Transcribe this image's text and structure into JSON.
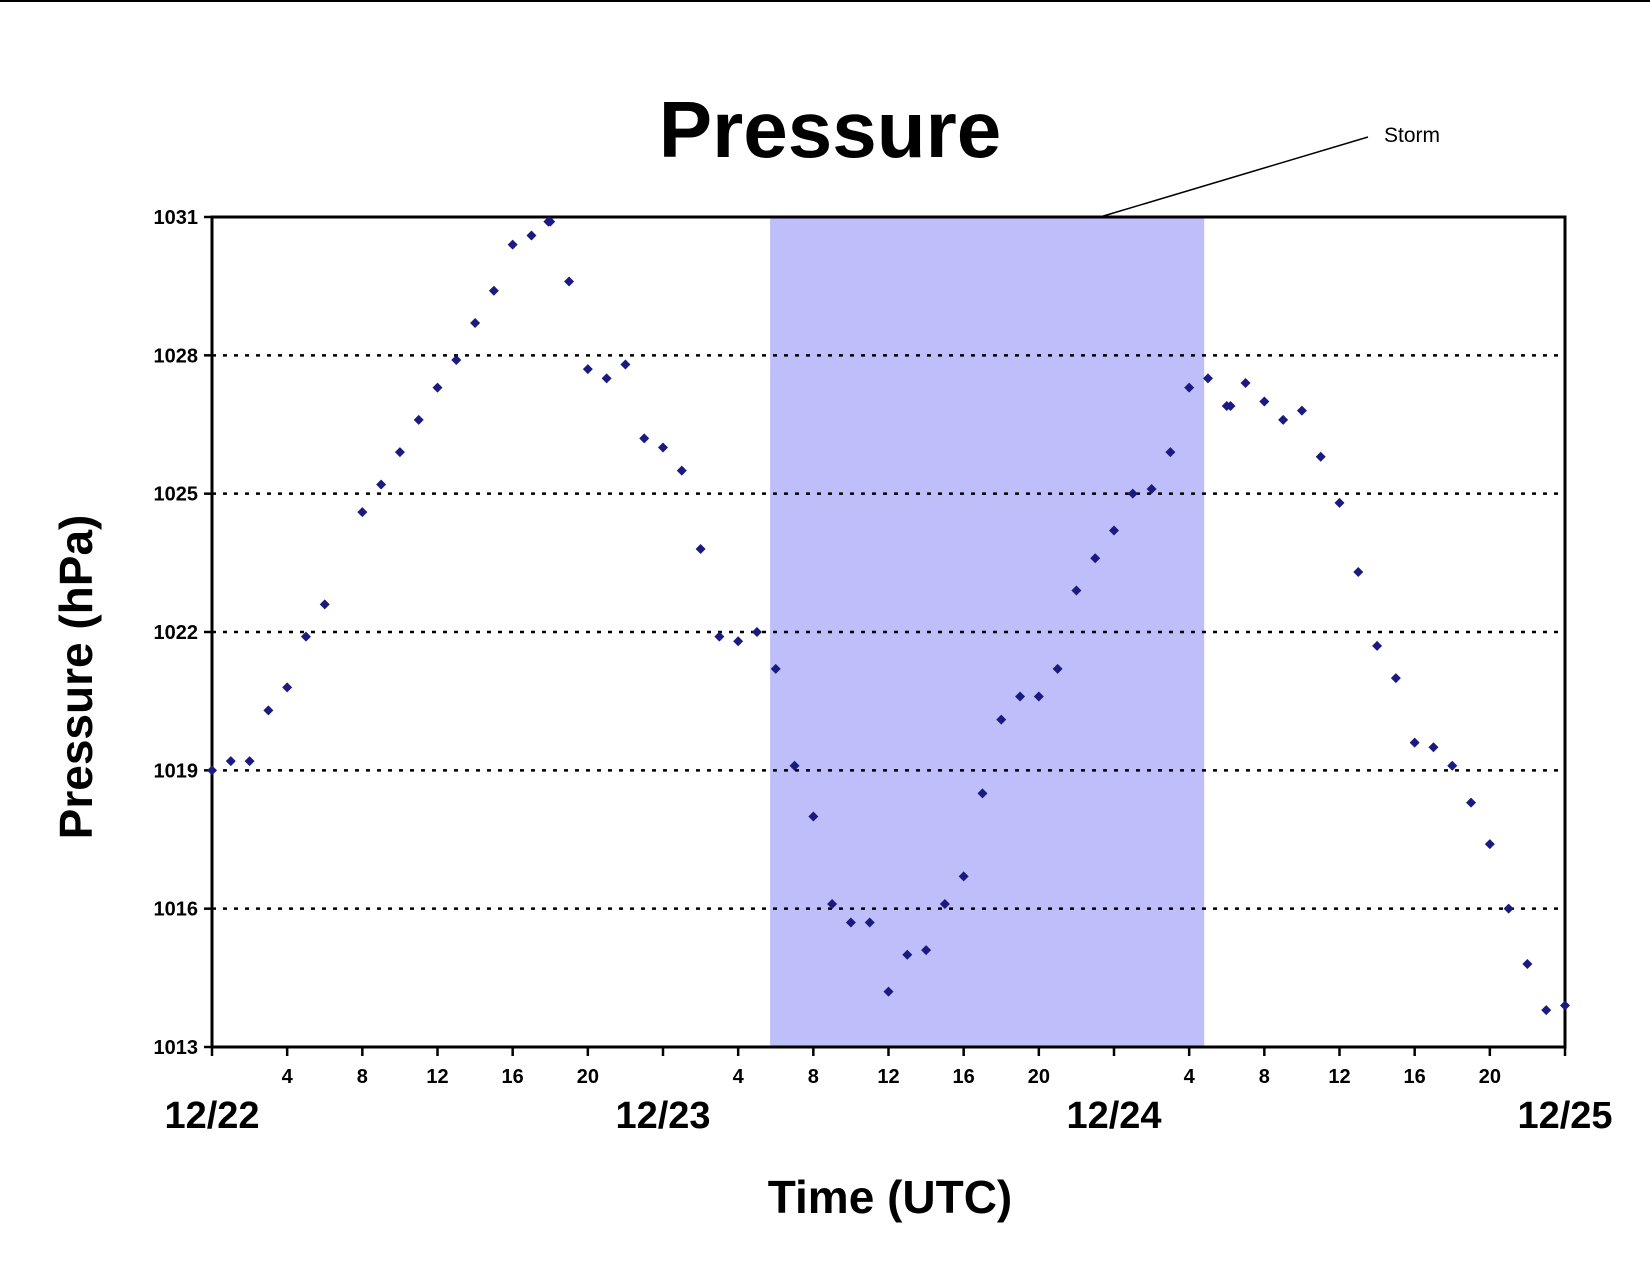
{
  "chart_data": {
    "type": "scatter",
    "title": "Pressure",
    "xlabel": "Time (UTC)",
    "ylabel": "Pressure (hPa)",
    "ylim": [
      1013,
      1031
    ],
    "yticks": [
      1013,
      1016,
      1019,
      1022,
      1025,
      1028,
      1031
    ],
    "xlim": [
      0,
      72
    ],
    "x_unit": "hours after 12/22 00 UTC",
    "hour_ticks": [
      {
        "x": 4,
        "label": "4"
      },
      {
        "x": 8,
        "label": "8"
      },
      {
        "x": 12,
        "label": "12"
      },
      {
        "x": 16,
        "label": "16"
      },
      {
        "x": 20,
        "label": "20"
      },
      {
        "x": 28,
        "label": "4"
      },
      {
        "x": 32,
        "label": "8"
      },
      {
        "x": 36,
        "label": "12"
      },
      {
        "x": 40,
        "label": "16"
      },
      {
        "x": 44,
        "label": "20"
      },
      {
        "x": 52,
        "label": "4"
      },
      {
        "x": 56,
        "label": "8"
      },
      {
        "x": 60,
        "label": "12"
      },
      {
        "x": 64,
        "label": "16"
      },
      {
        "x": 68,
        "label": "20"
      }
    ],
    "date_labels": [
      {
        "x": 0,
        "label": "12/22"
      },
      {
        "x": 24,
        "label": "12/23"
      },
      {
        "x": 48,
        "label": "12/24"
      },
      {
        "x": 72,
        "label": "12/25"
      }
    ],
    "grid": "horizontal-dotted",
    "marker_color": "#1a1a80",
    "shaded_region": {
      "x_start": 29.7,
      "x_end": 52.8,
      "color": "#bebefa",
      "label": "Storm"
    },
    "series": [
      {
        "points": [
          [
            0,
            1019.0
          ],
          [
            1,
            1019.2
          ],
          [
            2,
            1019.2
          ],
          [
            3,
            1020.3
          ],
          [
            4,
            1020.8
          ],
          [
            5,
            1021.9
          ],
          [
            6,
            1022.6
          ],
          [
            8,
            1024.6
          ],
          [
            9,
            1025.2
          ],
          [
            10,
            1025.9
          ],
          [
            11,
            1026.6
          ],
          [
            12,
            1027.3
          ],
          [
            13,
            1027.9
          ],
          [
            14,
            1028.7
          ],
          [
            15,
            1029.4
          ],
          [
            16,
            1030.4
          ],
          [
            17,
            1030.6
          ],
          [
            17.9,
            1030.9
          ],
          [
            18,
            1030.9
          ],
          [
            19,
            1029.6
          ],
          [
            20,
            1027.7
          ],
          [
            21,
            1027.5
          ],
          [
            22,
            1027.8
          ],
          [
            23,
            1026.2
          ],
          [
            24,
            1026.0
          ],
          [
            25,
            1025.5
          ],
          [
            26,
            1023.8
          ],
          [
            27,
            1021.9
          ],
          [
            28,
            1021.8
          ],
          [
            29,
            1022.0
          ],
          [
            30,
            1021.2
          ],
          [
            31,
            1019.1
          ],
          [
            32,
            1018.0
          ],
          [
            33,
            1016.1
          ],
          [
            34,
            1015.7
          ],
          [
            35,
            1015.7
          ],
          [
            36,
            1014.2
          ],
          [
            37,
            1015.0
          ],
          [
            38,
            1015.1
          ],
          [
            39,
            1016.1
          ],
          [
            40,
            1016.7
          ],
          [
            41,
            1018.5
          ],
          [
            42,
            1020.1
          ],
          [
            43,
            1020.6
          ],
          [
            44,
            1020.6
          ],
          [
            45,
            1021.2
          ],
          [
            46,
            1022.9
          ],
          [
            47,
            1023.6
          ],
          [
            48,
            1024.2
          ],
          [
            49,
            1025.0
          ],
          [
            50,
            1025.1
          ],
          [
            51,
            1025.9
          ],
          [
            52,
            1027.3
          ],
          [
            53,
            1027.5
          ],
          [
            54,
            1026.9
          ],
          [
            54.2,
            1026.9
          ],
          [
            55,
            1027.4
          ],
          [
            56,
            1027.0
          ],
          [
            57,
            1026.6
          ],
          [
            58,
            1026.8
          ],
          [
            59,
            1025.8
          ],
          [
            60,
            1024.8
          ],
          [
            61,
            1023.3
          ],
          [
            62,
            1021.7
          ],
          [
            63,
            1021.0
          ],
          [
            64,
            1019.6
          ],
          [
            65,
            1019.5
          ],
          [
            66,
            1019.1
          ],
          [
            67,
            1018.3
          ],
          [
            68,
            1017.4
          ],
          [
            69,
            1016.0
          ],
          [
            70,
            1014.8
          ],
          [
            71,
            1013.8
          ],
          [
            72,
            1013.9
          ]
        ]
      }
    ]
  }
}
